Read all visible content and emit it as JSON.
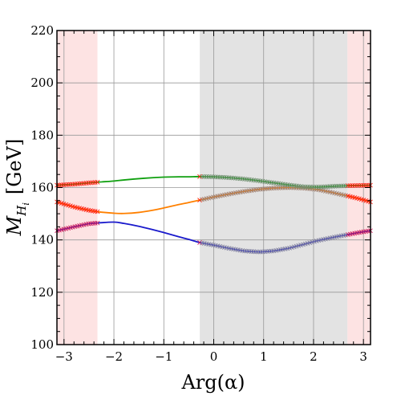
{
  "chart_data": {
    "type": "line",
    "title": "",
    "xlabel": "Arg(α)",
    "ylabel_main": "M",
    "ylabel_sub": "H",
    "ylabel_subsub": "i",
    "ylabel_unit": "[GeV]",
    "xlim": [
      -3.14159,
      3.14159
    ],
    "ylim": [
      100,
      220
    ],
    "xticks": [
      -3,
      -2,
      -1,
      0,
      1,
      2,
      3
    ],
    "xtick_labels": [
      "−3",
      "−2",
      "−1",
      "0",
      "1",
      "2",
      "3"
    ],
    "yticks": [
      100,
      120,
      140,
      160,
      180,
      200,
      220
    ],
    "ytick_labels": [
      "100",
      "120",
      "140",
      "160",
      "180",
      "200",
      "220"
    ],
    "grid": true,
    "shaded_regions": [
      {
        "x0": -3.14159,
        "x1": -2.33,
        "color": "#fde3e3"
      },
      {
        "x0": -0.28,
        "x1": 2.68,
        "color": "#e3e3e3"
      },
      {
        "x0": 2.68,
        "x1": 3.14159,
        "color": "#fde3e3"
      }
    ],
    "series": [
      {
        "color": "#1a1acc",
        "x": [
          -3.14,
          -2.8,
          -2.5,
          -2.3,
          -2.0,
          -1.8,
          -1.5,
          -1.2,
          -1.0,
          -0.7,
          -0.5,
          -0.28,
          0.0,
          0.3,
          0.6,
          0.9,
          1.0,
          1.2,
          1.5,
          1.8,
          2.1,
          2.4,
          2.68,
          2.9,
          3.14
        ],
        "y": [
          143.5,
          145.0,
          146.2,
          146.5,
          146.8,
          146.3,
          145.2,
          143.8,
          142.8,
          141.2,
          140.2,
          139.0,
          138.0,
          136.8,
          135.8,
          135.4,
          135.5,
          135.8,
          136.8,
          138.3,
          139.8,
          141.0,
          142.0,
          142.8,
          143.5
        ],
        "marked_ranges": [
          [
            -3.14,
            -2.33
          ],
          [
            -0.28,
            3.14
          ]
        ],
        "marker_color_pink": "#cc2060",
        "marker_color_gray": "#8080a0"
      },
      {
        "color": "#ff8000",
        "x": [
          -3.14,
          -2.8,
          -2.5,
          -2.3,
          -2.0,
          -1.8,
          -1.5,
          -1.2,
          -1.0,
          -0.7,
          -0.5,
          -0.28,
          0.0,
          0.3,
          0.6,
          0.9,
          1.2,
          1.5,
          1.8,
          2.1,
          2.4,
          2.68,
          2.9,
          3.14
        ],
        "y": [
          154.5,
          152.6,
          151.3,
          150.7,
          150.2,
          150.1,
          150.5,
          151.4,
          152.2,
          153.5,
          154.3,
          155.2,
          156.4,
          157.5,
          158.5,
          159.3,
          159.8,
          160.0,
          159.8,
          159.2,
          158.0,
          156.8,
          155.8,
          154.5
        ],
        "marked_ranges": [
          [
            -3.14,
            -2.33
          ],
          [
            -0.28,
            3.14
          ]
        ],
        "marker_color_pink": "#ff2010",
        "marker_color_gray": "#a08070"
      },
      {
        "color": "#10a010",
        "x": [
          -3.14,
          -2.8,
          -2.5,
          -2.3,
          -2.0,
          -1.8,
          -1.5,
          -1.2,
          -1.0,
          -0.7,
          -0.5,
          -0.28,
          0.0,
          0.3,
          0.6,
          0.9,
          1.2,
          1.5,
          1.8,
          2.1,
          2.4,
          2.68,
          2.9,
          3.14
        ],
        "y": [
          160.9,
          161.3,
          161.8,
          162.1,
          162.5,
          162.9,
          163.4,
          163.8,
          164.0,
          164.1,
          164.1,
          164.2,
          164.1,
          163.8,
          163.3,
          162.6,
          161.8,
          161.0,
          160.3,
          160.2,
          160.5,
          160.7,
          160.8,
          160.9
        ],
        "marked_ranges": [
          [
            -3.14,
            -2.33
          ],
          [
            -0.28,
            3.14
          ]
        ],
        "marker_color_pink": "#ff2010",
        "marker_color_gray": "#709070"
      }
    ]
  }
}
